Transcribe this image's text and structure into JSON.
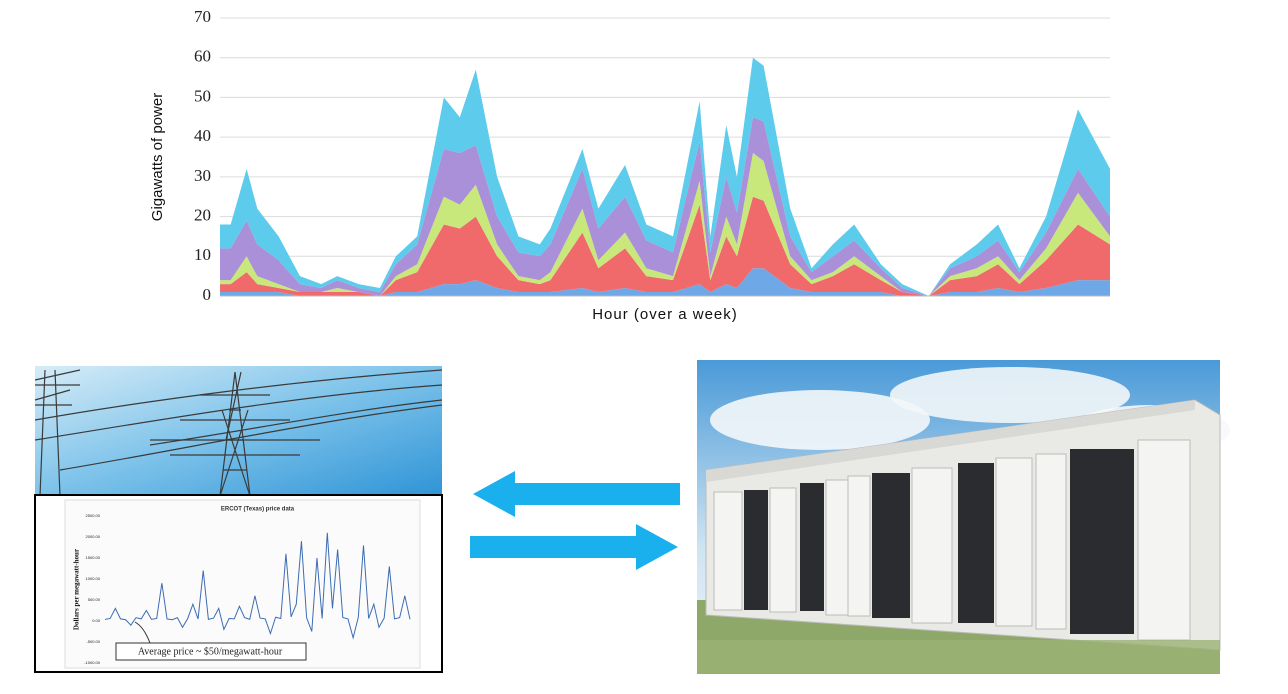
{
  "chart_data": [
    {
      "type": "area",
      "stacked": true,
      "y_label": "Gigawatts of power",
      "x_label": "Hour (over a week)",
      "x": [
        1,
        3,
        6,
        8,
        12,
        16,
        20,
        23,
        27,
        31,
        34,
        38,
        43,
        46,
        49,
        53,
        57,
        61,
        63,
        69,
        72,
        77,
        81,
        86,
        91,
        93,
        96,
        98,
        101,
        103,
        108,
        112,
        116,
        120,
        125,
        129,
        134,
        138,
        143,
        147,
        151,
        156,
        162,
        168
      ],
      "xlim": [
        1,
        168
      ],
      "ylim": [
        0,
        70
      ],
      "yticks": [
        0,
        10,
        20,
        30,
        40,
        50,
        60,
        70
      ],
      "grid": true,
      "series": [
        {
          "color": "#6ea8e6",
          "values": [
            1,
            1,
            1,
            1,
            1,
            0,
            0,
            0,
            0,
            0,
            1,
            1,
            3,
            3,
            4,
            2,
            1,
            1,
            1,
            2,
            1,
            2,
            1,
            1,
            3,
            1,
            3,
            2,
            7,
            7,
            2,
            1,
            1,
            1,
            1,
            0,
            0,
            1,
            1,
            2,
            1,
            2,
            4,
            4
          ]
        },
        {
          "color": "#f06a6c",
          "values": [
            2,
            2,
            5,
            2,
            1,
            1,
            1,
            1,
            1,
            0,
            3,
            5,
            15,
            14,
            16,
            8,
            3,
            2,
            3,
            14,
            6,
            10,
            4,
            3,
            20,
            3,
            12,
            8,
            18,
            17,
            6,
            2,
            4,
            7,
            3,
            1,
            0,
            3,
            4,
            6,
            2,
            7,
            14,
            9
          ]
        },
        {
          "color": "#c8e87c",
          "values": [
            1,
            1,
            4,
            2,
            1,
            0,
            0,
            1,
            0,
            0,
            1,
            2,
            7,
            6,
            8,
            3,
            1,
            1,
            2,
            6,
            2,
            4,
            2,
            1,
            6,
            1,
            5,
            3,
            11,
            10,
            2,
            1,
            1,
            2,
            1,
            0,
            0,
            1,
            2,
            2,
            1,
            3,
            8,
            2
          ]
        },
        {
          "color": "#aa90d8",
          "values": [
            8,
            8,
            9,
            8,
            6,
            2,
            1,
            2,
            1,
            1,
            3,
            5,
            12,
            13,
            10,
            7,
            6,
            6,
            7,
            10,
            8,
            9,
            7,
            6,
            10,
            6,
            10,
            8,
            9,
            10,
            5,
            2,
            4,
            4,
            2,
            1,
            0,
            2,
            3,
            4,
            2,
            4,
            6,
            5
          ]
        },
        {
          "color": "#5ccbec",
          "values": [
            6,
            6,
            13,
            9,
            6,
            2,
            1,
            1,
            1,
            1,
            2,
            2,
            13,
            9,
            19,
            10,
            4,
            3,
            4,
            5,
            5,
            8,
            4,
            4,
            10,
            4,
            13,
            9,
            15,
            14,
            7,
            1,
            3,
            4,
            1,
            1,
            0,
            1,
            3,
            4,
            1,
            4,
            15,
            12
          ]
        }
      ]
    },
    {
      "type": "line",
      "title": "ERCOT (Texas) price data",
      "y_label": "Dollars per megawatt-hour",
      "annotation": "Average price ~ $50/megawatt-hour",
      "ylim": [
        -1000,
        2500
      ],
      "yticks": [
        {
          "value": 2500,
          "label": "2500.00"
        },
        {
          "value": 2000,
          "label": "2000.00"
        },
        {
          "value": 1500,
          "label": "1500.00"
        },
        {
          "value": 1000,
          "label": "1000.00"
        },
        {
          "value": 500,
          "label": "500.00"
        },
        {
          "value": 0,
          "label": "0.00"
        },
        {
          "value": -500,
          "label": "-500.00"
        },
        {
          "value": -1000,
          "label": "-1000.00"
        }
      ],
      "grid": false,
      "color": "#3c6cb4",
      "values": [
        40,
        60,
        300,
        50,
        30,
        -100,
        80,
        50,
        250,
        40,
        60,
        900,
        50,
        30,
        80,
        -150,
        60,
        400,
        50,
        1200,
        40,
        70,
        300,
        -200,
        60,
        50,
        350,
        80,
        40,
        600,
        70,
        50,
        -300,
        90,
        60,
        1600,
        100,
        400,
        1900,
        80,
        -250,
        1500,
        60,
        2100,
        300,
        1700,
        80,
        50,
        -400,
        90,
        1800,
        60,
        400,
        -150,
        70,
        1300,
        50,
        80,
        600,
        40
      ]
    }
  ]
}
